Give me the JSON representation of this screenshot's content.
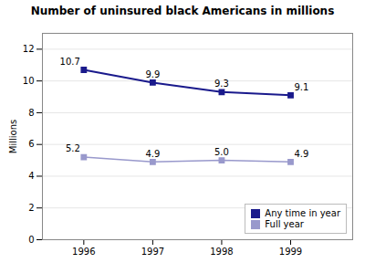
{
  "chart_data": {
    "type": "line",
    "title": "Number of uninsured black Americans in millions",
    "x": [
      1996,
      1997,
      1998,
      1999
    ],
    "series": [
      {
        "name": "Any time in year",
        "color": "#1a1a8c",
        "values": [
          10.7,
          9.9,
          9.3,
          9.1
        ]
      },
      {
        "name": "Full year",
        "color": "#9999cc",
        "values": [
          5.2,
          4.9,
          5.0,
          4.9
        ],
        "value_labels": [
          "5.2",
          "4.9",
          "5.0",
          "4.9"
        ]
      }
    ],
    "ylabel": "Millions",
    "xlim": [
      1995.4,
      1999.9
    ],
    "xticks": [
      1996,
      1997,
      1998,
      1999
    ],
    "ylim": [
      0,
      13
    ],
    "yticks": [
      0,
      2,
      4,
      6,
      8,
      10,
      12
    ],
    "grid": true,
    "legend": "lower right",
    "data_labels": true,
    "marker": "square"
  }
}
